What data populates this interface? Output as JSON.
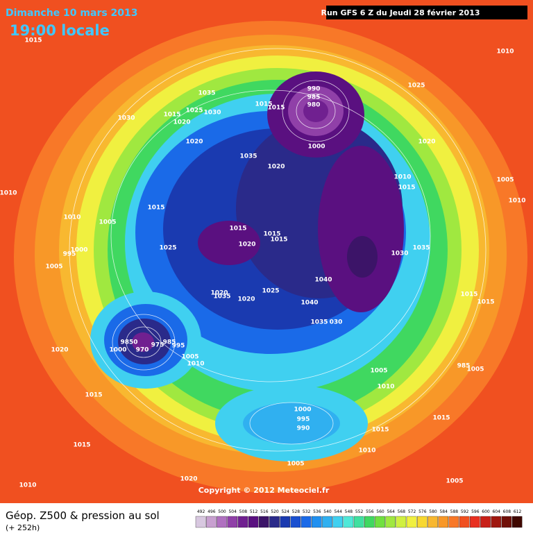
{
  "header": {
    "date": "Dimanche 10 mars 2013",
    "time": "19:00 locale",
    "run": "Run GFS 6 Z du Jeudi 28 février 2013"
  },
  "copyright": "Copyright © 2012 Meteociel.fr",
  "footer": {
    "title": "Géop. Z500 & pression au sol",
    "subtitle": "(+ 252h)"
  },
  "legend": {
    "ticks": [
      492,
      496,
      500,
      504,
      508,
      512,
      516,
      520,
      524,
      528,
      532,
      536,
      540,
      544,
      548,
      552,
      556,
      560,
      564,
      568,
      572,
      576,
      580,
      584,
      588,
      592,
      596,
      600,
      604,
      608,
      612
    ],
    "colors": [
      "#d8c8e0",
      "#c8a0d0",
      "#b070c0",
      "#9040a8",
      "#702090",
      "#5a1080",
      "#3c1468",
      "#2a2a8a",
      "#1a3ab0",
      "#1a50d0",
      "#1a6ae8",
      "#2090f0",
      "#30b0f0",
      "#40d0f0",
      "#50e8d8",
      "#40e0a0",
      "#40d860",
      "#70e040",
      "#a0e840",
      "#d0f040",
      "#f0f040",
      "#f8d830",
      "#f8b830",
      "#f89828",
      "#f87828",
      "#f05020",
      "#e83020",
      "#c82018",
      "#a01810",
      "#701008",
      "#400800"
    ]
  },
  "isobar_labels": [
    "1015",
    "1010",
    "1030",
    "1035",
    "1015",
    "1025",
    "1030",
    "1020",
    "1020",
    "1015",
    "1015",
    "990",
    "985",
    "980",
    "1000",
    "1025",
    "1020",
    "1035",
    "1020",
    "1010",
    "1015",
    "1005",
    "1010",
    "1010",
    "1010",
    "1005",
    "1015",
    "1015",
    "1020",
    "1015",
    "1015",
    "995",
    "1000",
    "1025",
    "1030",
    "1035",
    "1005",
    "1040",
    "1020",
    "1035",
    "1020",
    "1025",
    "1040",
    "1015",
    "1015",
    "1035",
    "030",
    "9850",
    "975",
    "985",
    "995",
    "1000",
    "970",
    "1005",
    "1010",
    "1020",
    "1005",
    "1005",
    "1010",
    "1015",
    "1000",
    "995",
    "990",
    "1015",
    "1015",
    "1010",
    "1015",
    "1005",
    "1010",
    "1020",
    "1005",
    "985"
  ]
}
